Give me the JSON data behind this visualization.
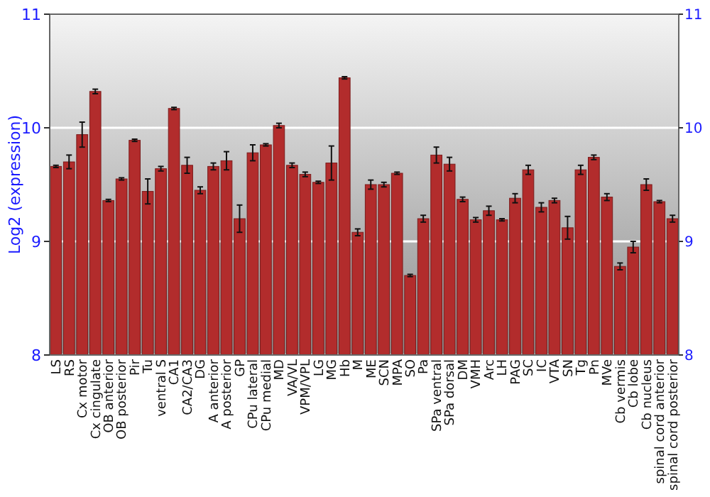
{
  "chart_data": {
    "type": "bar",
    "ylabel": "Log2 (expression)",
    "categories": [
      "LS",
      "RS",
      "Cx motor",
      "Cx cingulate",
      "OB anterior",
      "OB posterior",
      "Pir",
      "Tu",
      "ventral S",
      "CA1",
      "CA2/CA3",
      "DG",
      "A anterior",
      "A posterior",
      "GP",
      "CPu lateral",
      "CPu medial",
      "MD",
      "VA/VL",
      "VPM/VPL",
      "LG",
      "MG",
      "Hb",
      "M",
      "ME",
      "SCN",
      "MPA",
      "SO",
      "Pa",
      "SPa ventral",
      "SPa dorsal",
      "DM",
      "VMH",
      "Arc",
      "LH",
      "PAG",
      "SC",
      "IC",
      "VTA",
      "SN",
      "Tg",
      "Pn",
      "MVe",
      "Cb vermis",
      "Cb lobe",
      "Cb nucleus",
      "spinal cord anterior",
      "spinal cord posterior"
    ],
    "values": [
      9.66,
      9.7,
      9.94,
      10.32,
      9.36,
      9.55,
      9.89,
      9.44,
      9.64,
      10.17,
      9.67,
      9.45,
      9.66,
      9.71,
      9.2,
      9.78,
      9.85,
      10.02,
      9.67,
      9.59,
      9.52,
      9.69,
      10.44,
      9.08,
      9.5,
      9.5,
      9.6,
      8.7,
      9.2,
      9.76,
      9.68,
      9.37,
      9.19,
      9.27,
      9.19,
      9.38,
      9.63,
      9.3,
      9.36,
      9.12,
      9.63,
      9.74,
      9.39,
      8.78,
      8.95,
      9.5,
      9.35,
      9.2
    ],
    "errors": [
      0.01,
      0.06,
      0.11,
      0.02,
      0.01,
      0.01,
      0.01,
      0.11,
      0.02,
      0.01,
      0.07,
      0.03,
      0.03,
      0.08,
      0.12,
      0.07,
      0.01,
      0.02,
      0.02,
      0.02,
      0.01,
      0.15,
      0.01,
      0.03,
      0.04,
      0.02,
      0.01,
      0.01,
      0.03,
      0.07,
      0.06,
      0.02,
      0.02,
      0.04,
      0.01,
      0.04,
      0.04,
      0.04,
      0.02,
      0.1,
      0.04,
      0.02,
      0.03,
      0.03,
      0.05,
      0.05,
      0.01,
      0.03
    ],
    "color": "#b22c2c",
    "ylim": [
      8,
      11
    ],
    "yticks": [
      8,
      9,
      10,
      11
    ],
    "y2lim": [
      8,
      11
    ],
    "y2ticks": [
      8,
      9,
      10,
      11
    ],
    "grid": "y"
  }
}
